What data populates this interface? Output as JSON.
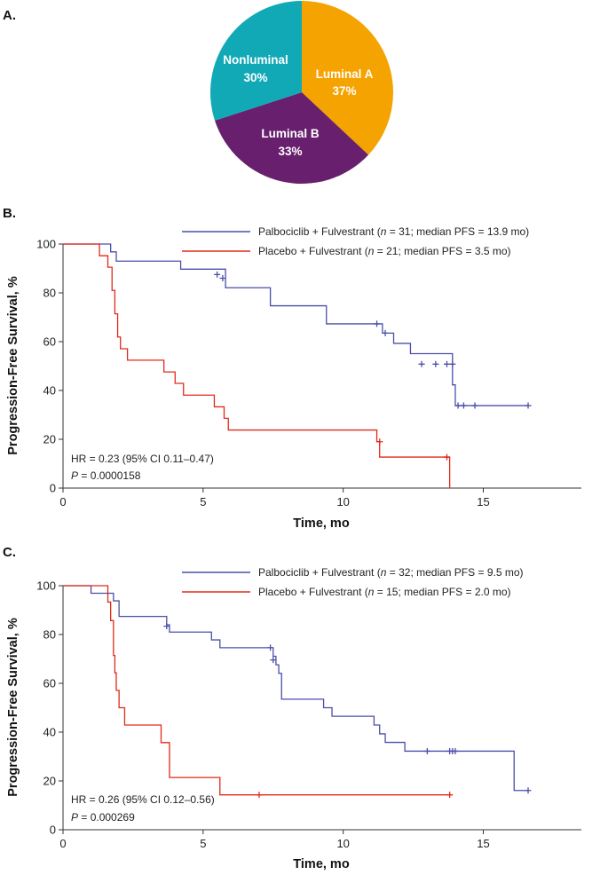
{
  "colors": {
    "luminal_a": "#F5A300",
    "luminal_b": "#68206E",
    "nonluminal": "#11A9B6",
    "palbociclib": "#4A4FA8",
    "placebo": "#E02A1A",
    "axis": "#333333"
  },
  "chart_data": [
    {
      "panel": "A.",
      "type": "pie",
      "slices": [
        {
          "name": "Luminal A",
          "value": 37,
          "label": "37%",
          "color": "#F5A300"
        },
        {
          "name": "Luminal B",
          "value": 33,
          "label": "33%",
          "color": "#68206E"
        },
        {
          "name": "Nonluminal",
          "value": 30,
          "label": "30%",
          "color": "#11A9B6"
        }
      ]
    },
    {
      "panel": "B.",
      "type": "line",
      "subtype": "kaplan-meier",
      "xlabel": "Time, mo",
      "ylabel": "Progression-Free Survival, %",
      "xlim": [
        0,
        18.5
      ],
      "ylim": [
        0,
        100
      ],
      "xticks": [
        0,
        5,
        10,
        15
      ],
      "yticks": [
        0,
        20,
        40,
        60,
        80,
        100
      ],
      "legend": [
        {
          "pre": "Palbociclib + Fulvestrant (",
          "n": "n",
          "post": " = 31; median PFS = 13.9 mo)",
          "color": "#4A4FA8"
        },
        {
          "pre": "Placebo + Fulvestrant (",
          "n": "n",
          "post": " = 21; median PFS = 3.5 mo)",
          "color": "#E02A1A"
        }
      ],
      "hr_text": "HR = 0.23 (95% CI 0.11–0.47)",
      "p_label": "P",
      "p_text": " = 0.0000158",
      "series": [
        {
          "name": "Palbociclib + Fulvestrant",
          "color": "#4A4FA8",
          "x": [
            0,
            1.7,
            1.7,
            1.9,
            1.9,
            4.2,
            4.2,
            5.8,
            5.8,
            7.4,
            7.4,
            9.4,
            9.4,
            11.4,
            11.4,
            11.8,
            11.8,
            12.4,
            12.4,
            13.9,
            13.9,
            14.0,
            14.0,
            16.6
          ],
          "y": [
            100,
            100,
            96.8,
            96.8,
            93,
            93,
            89.7,
            89.7,
            82.1,
            82.1,
            74.7,
            74.7,
            67.3,
            67.3,
            63.5,
            63.5,
            59.3,
            59.3,
            55.1,
            55.1,
            42.3,
            42.3,
            33.8,
            33.8
          ],
          "censors": [
            [
              5.5,
              87.5
            ],
            [
              5.7,
              86.0
            ],
            [
              11.2,
              67.3
            ],
            [
              11.5,
              63.5
            ],
            [
              12.8,
              50.8
            ],
            [
              13.3,
              50.8
            ],
            [
              13.7,
              50.8
            ],
            [
              13.9,
              50.8
            ],
            [
              14.1,
              33.8
            ],
            [
              14.3,
              33.8
            ],
            [
              14.7,
              33.8
            ],
            [
              16.6,
              33.8
            ]
          ]
        },
        {
          "name": "Placebo + Fulvestrant",
          "color": "#E02A1A",
          "x": [
            0,
            1.3,
            1.3,
            1.6,
            1.6,
            1.75,
            1.75,
            1.85,
            1.85,
            1.95,
            1.95,
            2.05,
            2.05,
            2.3,
            2.3,
            3.6,
            3.6,
            4.0,
            4.0,
            4.3,
            4.3,
            5.4,
            5.4,
            5.75,
            5.75,
            5.9,
            5.9,
            11.2,
            11.2,
            11.3,
            11.3,
            13.8,
            13.8
          ],
          "y": [
            100,
            100,
            95.2,
            95.2,
            90.5,
            90.5,
            81,
            81,
            71.4,
            71.4,
            61.9,
            61.9,
            57.1,
            57.1,
            52.4,
            52.4,
            47.6,
            47.6,
            42.9,
            42.9,
            38.1,
            38.1,
            33.3,
            33.3,
            28.6,
            28.6,
            23.8,
            23.8,
            19.0,
            19.0,
            12.7,
            12.7,
            0
          ],
          "censors": [
            [
              11.3,
              19.0
            ],
            [
              13.7,
              12.7
            ]
          ]
        }
      ]
    },
    {
      "panel": "C.",
      "type": "line",
      "subtype": "kaplan-meier",
      "xlabel": "Time, mo",
      "ylabel": "Progression-Free Survival, %",
      "xlim": [
        0,
        18.5
      ],
      "ylim": [
        0,
        100
      ],
      "xticks": [
        0,
        5,
        10,
        15
      ],
      "yticks": [
        0,
        20,
        40,
        60,
        80,
        100
      ],
      "legend": [
        {
          "pre": "Palbociclib + Fulvestrant (",
          "n": "n",
          "post": " = 32; median PFS = 9.5 mo)",
          "color": "#4A4FA8"
        },
        {
          "pre": "Placebo + Fulvestrant (",
          "n": "n",
          "post": " = 15; median PFS = 2.0 mo)",
          "color": "#E02A1A"
        }
      ],
      "hr_text": "HR = 0.26 (95% CI 0.12–0.56)",
      "p_label": "P",
      "p_text": " = 0.000269",
      "series": [
        {
          "name": "Palbociclib + Fulvestrant",
          "color": "#4A4FA8",
          "x": [
            0,
            1.0,
            1.0,
            1.8,
            1.8,
            2.0,
            2.0,
            3.7,
            3.7,
            3.8,
            3.8,
            5.3,
            5.3,
            5.6,
            5.6,
            7.5,
            7.5,
            7.6,
            7.6,
            7.7,
            7.7,
            7.8,
            7.8,
            9.3,
            9.3,
            9.6,
            9.6,
            11.1,
            11.1,
            11.3,
            11.3,
            11.5,
            11.5,
            12.2,
            12.2,
            16.1,
            16.1,
            16.6
          ],
          "y": [
            100,
            100,
            96.9,
            96.9,
            93.8,
            93.8,
            87.4,
            87.4,
            84,
            84,
            81,
            81,
            77.8,
            77.8,
            74.6,
            74.6,
            71.1,
            71.1,
            67.6,
            67.6,
            64.1,
            64.1,
            53.5,
            53.5,
            50,
            50,
            46.5,
            46.5,
            42.9,
            42.9,
            39.3,
            39.3,
            35.8,
            35.8,
            32.2,
            32.2,
            16.1,
            16.1
          ],
          "censors": [
            [
              3.7,
              83.4
            ],
            [
              7.4,
              74.6
            ],
            [
              7.5,
              69.6
            ],
            [
              13.0,
              32.2
            ],
            [
              13.8,
              32.2
            ],
            [
              13.9,
              32.2
            ],
            [
              14.0,
              32.2
            ],
            [
              16.6,
              16.1
            ]
          ]
        },
        {
          "name": "Placebo + Fulvestrant",
          "color": "#E02A1A",
          "x": [
            0,
            1.6,
            1.6,
            1.7,
            1.7,
            1.8,
            1.8,
            1.85,
            1.85,
            1.9,
            1.9,
            2.0,
            2.0,
            2.2,
            2.2,
            3.5,
            3.5,
            3.8,
            3.8,
            5.6,
            5.6,
            13.8
          ],
          "y": [
            100,
            100,
            93.3,
            93.3,
            85.7,
            85.7,
            71.4,
            71.4,
            64.3,
            64.3,
            57.1,
            57.1,
            50,
            50,
            42.9,
            42.9,
            35.7,
            35.7,
            21.4,
            21.4,
            14.3,
            14.3
          ],
          "censors": [
            [
              7.0,
              14.3
            ],
            [
              13.8,
              14.3
            ]
          ]
        }
      ]
    }
  ]
}
